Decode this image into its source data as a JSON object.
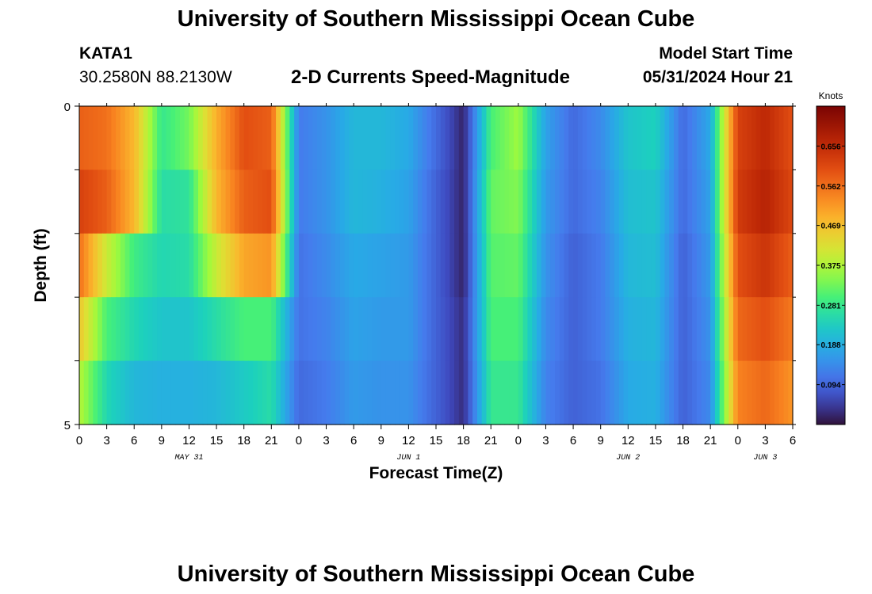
{
  "page": {
    "title_top": "University of Southern Mississippi Ocean Cube",
    "title_bottom": "University of Southern Mississippi Ocean Cube",
    "station_id": "KATA1",
    "station_coords": "30.2580N  88.2130W",
    "chart_title": "2-D Currents Speed-Magnitude",
    "model_start_label": "Model Start Time",
    "model_start_value": "05/31/2024 Hour 21"
  },
  "chart_data": {
    "type": "heatmap",
    "title": "2-D Currents Speed-Magnitude",
    "xlabel": "Forecast Time(Z)",
    "ylabel": "Depth (ft)",
    "colorbar_label": "Knots",
    "colorbar_ticks": [
      "0.656",
      "0.562",
      "0.469",
      "0.375",
      "0.281",
      "0.188",
      "0.094"
    ],
    "colorbar_tick_values": [
      0.656,
      0.562,
      0.469,
      0.375,
      0.281,
      0.188,
      0.094
    ],
    "color_range": [
      0,
      0.75
    ],
    "y_ticks": [
      "0",
      "5"
    ],
    "ylim": [
      0,
      5
    ],
    "depth_levels": [
      0.5,
      1.5,
      2.5,
      3.5,
      4.5
    ],
    "x_tick_labels": [
      "0",
      "3",
      "6",
      "9",
      "12",
      "15",
      "18",
      "21",
      "0",
      "3",
      "6",
      "9",
      "12",
      "15",
      "18",
      "21",
      "0",
      "3",
      "6",
      "9",
      "12",
      "15",
      "18",
      "21",
      "0",
      "3",
      "6"
    ],
    "day_labels": [
      {
        "label": "MAY 31",
        "hour": 12
      },
      {
        "label": "JUN 1",
        "hour": 36
      },
      {
        "label": "JUN 2",
        "hour": 60
      },
      {
        "label": "JUN 3",
        "hour": 75
      }
    ],
    "xlim": [
      0,
      78
    ],
    "hours": [
      0,
      3,
      6,
      9,
      12,
      15,
      18,
      21,
      24,
      27,
      30,
      33,
      36,
      39,
      42,
      45,
      48,
      51,
      54,
      57,
      60,
      63,
      66,
      69,
      72,
      75,
      78
    ],
    "speed_by_depth": [
      [
        0.58,
        0.56,
        0.48,
        0.28,
        0.33,
        0.49,
        0.6,
        0.58,
        0.12,
        0.15,
        0.2,
        0.2,
        0.18,
        0.1,
        0.02,
        0.3,
        0.36,
        0.17,
        0.1,
        0.14,
        0.22,
        0.24,
        0.1,
        0.18,
        0.62,
        0.66,
        0.6
      ],
      [
        0.62,
        0.58,
        0.48,
        0.26,
        0.27,
        0.48,
        0.58,
        0.6,
        0.12,
        0.15,
        0.2,
        0.19,
        0.17,
        0.09,
        0.02,
        0.32,
        0.34,
        0.16,
        0.1,
        0.13,
        0.21,
        0.22,
        0.1,
        0.17,
        0.63,
        0.67,
        0.61
      ],
      [
        0.56,
        0.4,
        0.29,
        0.25,
        0.26,
        0.4,
        0.5,
        0.52,
        0.11,
        0.14,
        0.18,
        0.17,
        0.16,
        0.09,
        0.02,
        0.31,
        0.32,
        0.15,
        0.09,
        0.12,
        0.2,
        0.21,
        0.09,
        0.16,
        0.6,
        0.64,
        0.58
      ],
      [
        0.46,
        0.3,
        0.25,
        0.22,
        0.22,
        0.26,
        0.3,
        0.3,
        0.11,
        0.13,
        0.17,
        0.16,
        0.16,
        0.09,
        0.03,
        0.3,
        0.3,
        0.14,
        0.09,
        0.12,
        0.19,
        0.2,
        0.09,
        0.15,
        0.57,
        0.6,
        0.55
      ],
      [
        0.38,
        0.25,
        0.2,
        0.19,
        0.19,
        0.2,
        0.23,
        0.26,
        0.1,
        0.12,
        0.16,
        0.15,
        0.15,
        0.09,
        0.03,
        0.28,
        0.28,
        0.13,
        0.09,
        0.11,
        0.18,
        0.19,
        0.09,
        0.14,
        0.54,
        0.57,
        0.52
      ]
    ]
  }
}
